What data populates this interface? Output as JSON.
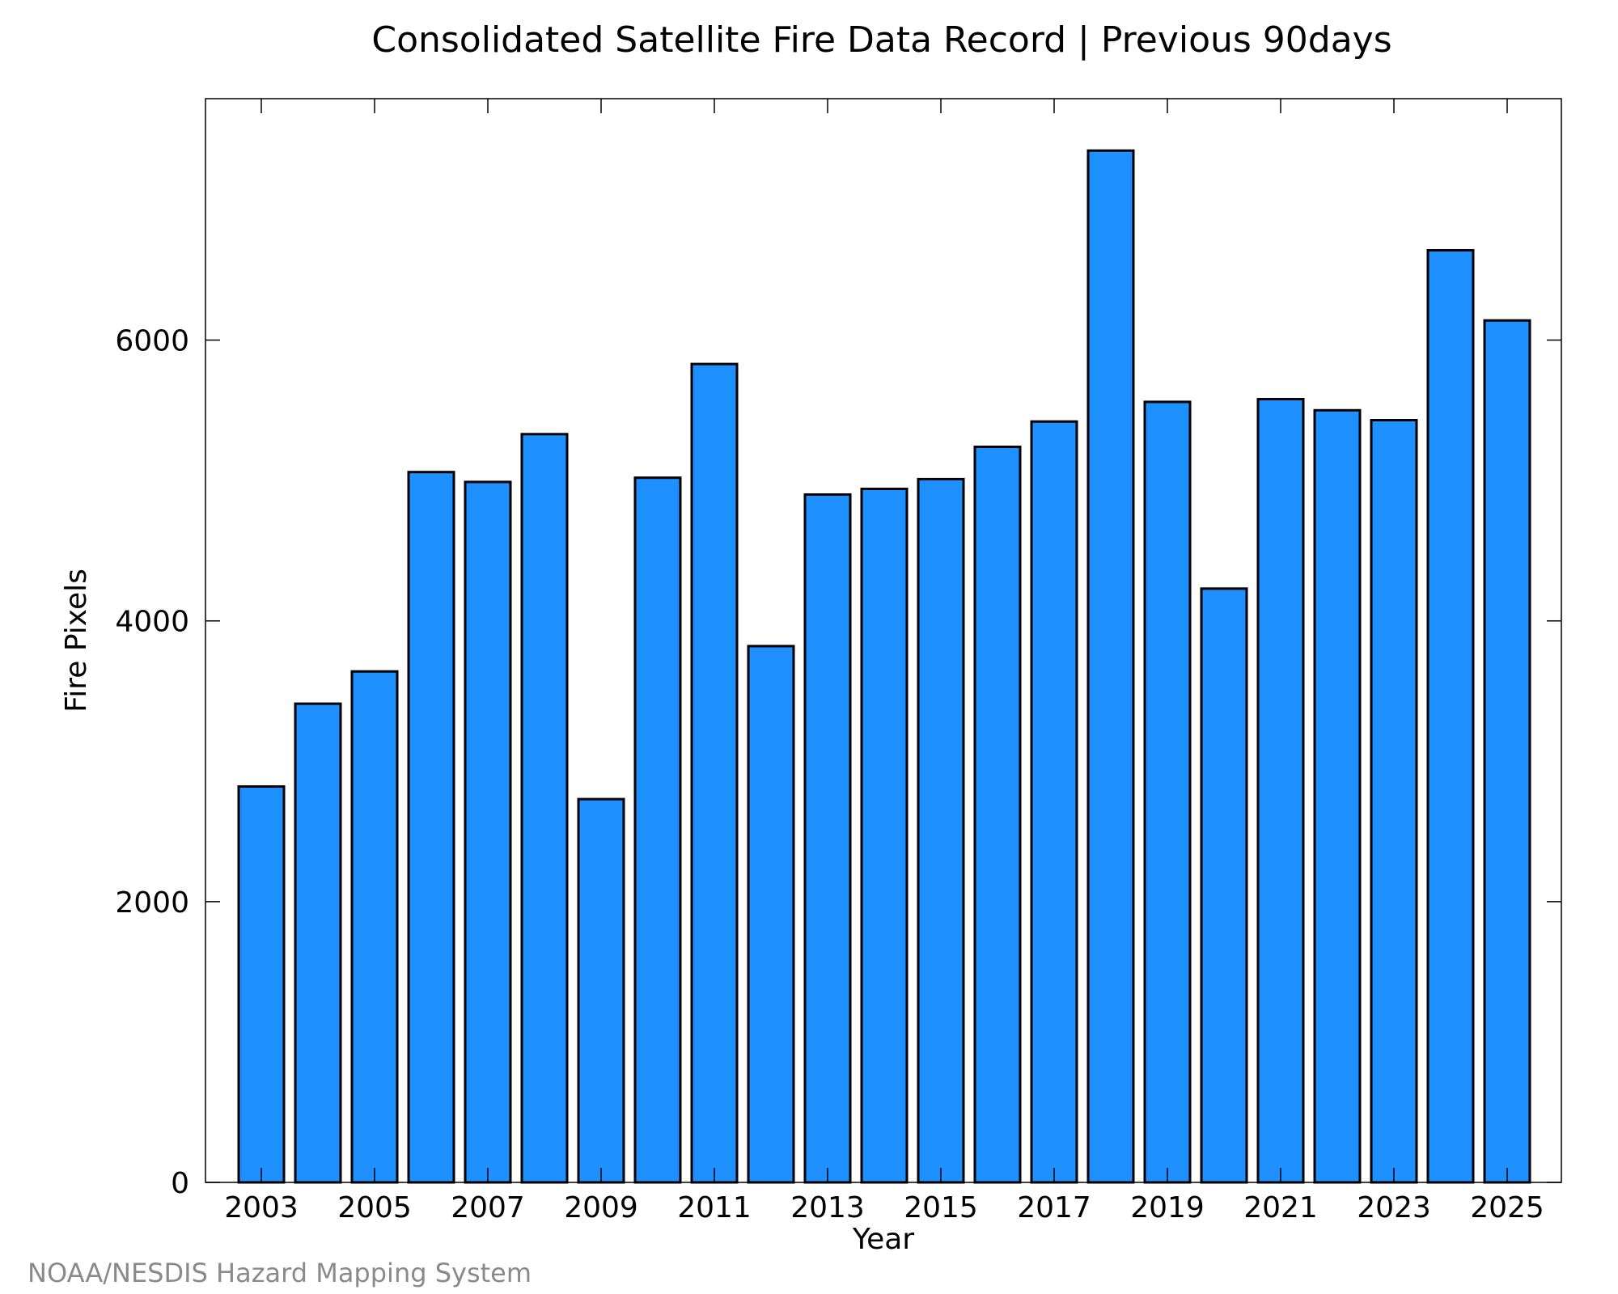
{
  "chart_data": {
    "type": "bar",
    "title": "Consolidated Satellite Fire Data Record | Previous 90days",
    "xlabel": "Year",
    "ylabel": "Fire Pixels",
    "categories": [
      "2003",
      "2004",
      "2005",
      "2006",
      "2007",
      "2008",
      "2009",
      "2010",
      "2011",
      "2012",
      "2013",
      "2014",
      "2015",
      "2016",
      "2017",
      "2018",
      "2019",
      "2020",
      "2021",
      "2022",
      "2023",
      "2024",
      "2025"
    ],
    "values": [
      2820,
      3410,
      3640,
      5060,
      4990,
      5330,
      2730,
      5020,
      5830,
      3820,
      4900,
      4940,
      5010,
      5240,
      5420,
      7350,
      5560,
      4230,
      5580,
      5500,
      5430,
      6640,
      6140
    ],
    "xtick_labels": [
      "2003",
      "2005",
      "2007",
      "2009",
      "2011",
      "2013",
      "2015",
      "2017",
      "2019",
      "2021",
      "2023",
      "2025"
    ],
    "yticks": [
      0,
      2000,
      4000,
      6000
    ],
    "ytick_labels": [
      "0",
      "2000",
      "4000",
      "6000"
    ],
    "ylim": [
      0,
      7720
    ],
    "grid": false,
    "colors": {
      "bar_fill": "#1e90ff",
      "bar_stroke": "#000000",
      "frame": "#000000",
      "credit": "#8a8a8a"
    }
  },
  "footer": {
    "credit": "NOAA/NESDIS Hazard Mapping System"
  }
}
